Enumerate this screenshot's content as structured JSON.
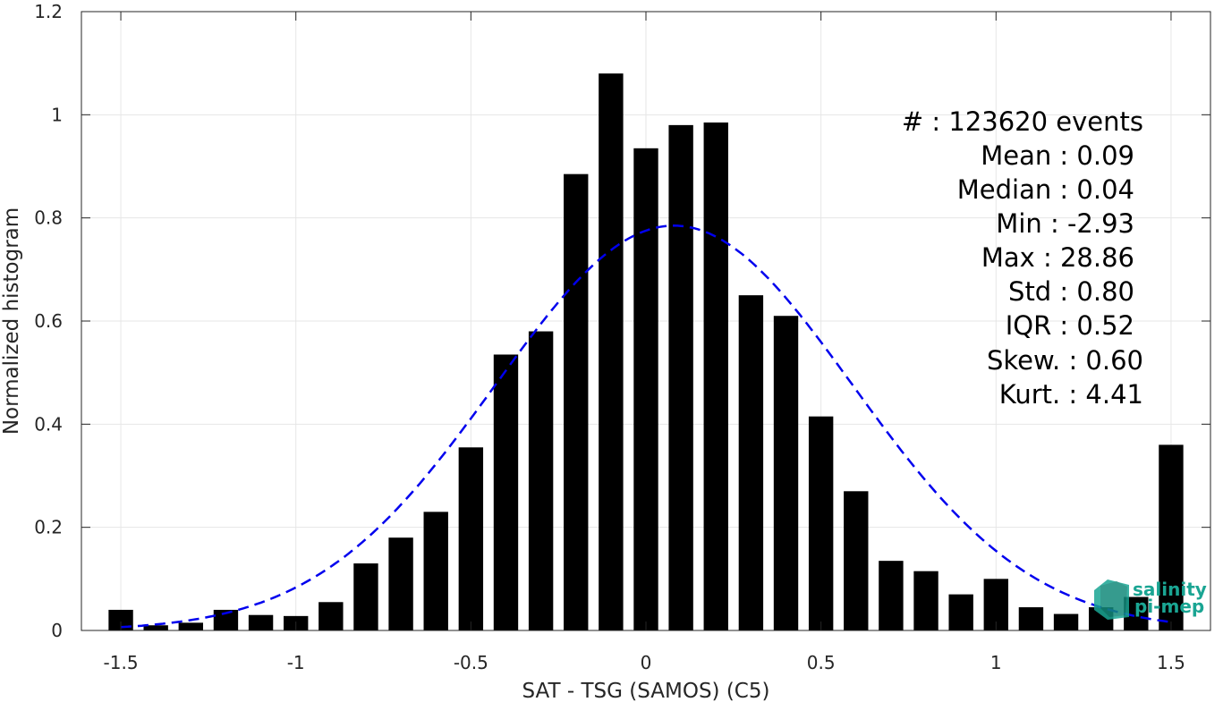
{
  "chart_data": {
    "type": "bar",
    "xlabel": "SAT - TSG (SAMOS) (C5)",
    "ylabel": "Normalized histogram",
    "xlim": [
      -1.6,
      1.6
    ],
    "ylim": [
      0,
      1.2
    ],
    "xticks": [
      -1.5,
      -1,
      -0.5,
      0,
      0.5,
      1,
      1.5
    ],
    "xtick_labels": [
      "-1.5",
      "-1",
      "-0.5",
      "0",
      "0.5",
      "1",
      "1.5"
    ],
    "yticks": [
      0,
      0.2,
      0.4,
      0.6,
      0.8,
      1,
      1.2
    ],
    "ytick_labels": [
      "0",
      "0.2",
      "0.4",
      "0.6",
      "0.8",
      "1",
      "1.2"
    ],
    "grid": true,
    "bar_color": "#000000",
    "fit_color": "#0000ee",
    "x": [
      -1.5,
      -1.4,
      -1.3,
      -1.2,
      -1.1,
      -1.0,
      -0.9,
      -0.8,
      -0.7,
      -0.6,
      -0.5,
      -0.4,
      -0.3,
      -0.2,
      -0.1,
      0.0,
      0.1,
      0.2,
      0.3,
      0.4,
      0.5,
      0.6,
      0.7,
      0.8,
      0.9,
      1.0,
      1.1,
      1.2,
      1.3,
      1.4,
      1.5
    ],
    "values": [
      0.04,
      0.01,
      0.015,
      0.04,
      0.03,
      0.028,
      0.055,
      0.13,
      0.18,
      0.23,
      0.355,
      0.535,
      0.58,
      0.885,
      1.08,
      0.935,
      0.98,
      0.985,
      0.65,
      0.61,
      0.415,
      0.27,
      0.135,
      0.115,
      0.07,
      0.1,
      0.045,
      0.032,
      0.045,
      0.065,
      0.36
    ],
    "fit": {
      "type": "gaussian",
      "style": "dashed",
      "mean": 0.08,
      "std": 0.51,
      "peak": 0.785
    },
    "stats": [
      {
        "label": "#   : 123620 events"
      },
      {
        "label": "Mean : 0.09"
      },
      {
        "label": "Median : 0.04"
      },
      {
        "label": "Min : -2.93"
      },
      {
        "label": "Max : 28.86"
      },
      {
        "label": "Std : 0.80"
      },
      {
        "label": "IQR : 0.52"
      },
      {
        "label": "Skew. : 0.60"
      },
      {
        "label": "Kurt. : 4.41"
      }
    ]
  },
  "logo": {
    "line1": "salinity",
    "line2": "pi-mep",
    "color": "#1aa593"
  }
}
